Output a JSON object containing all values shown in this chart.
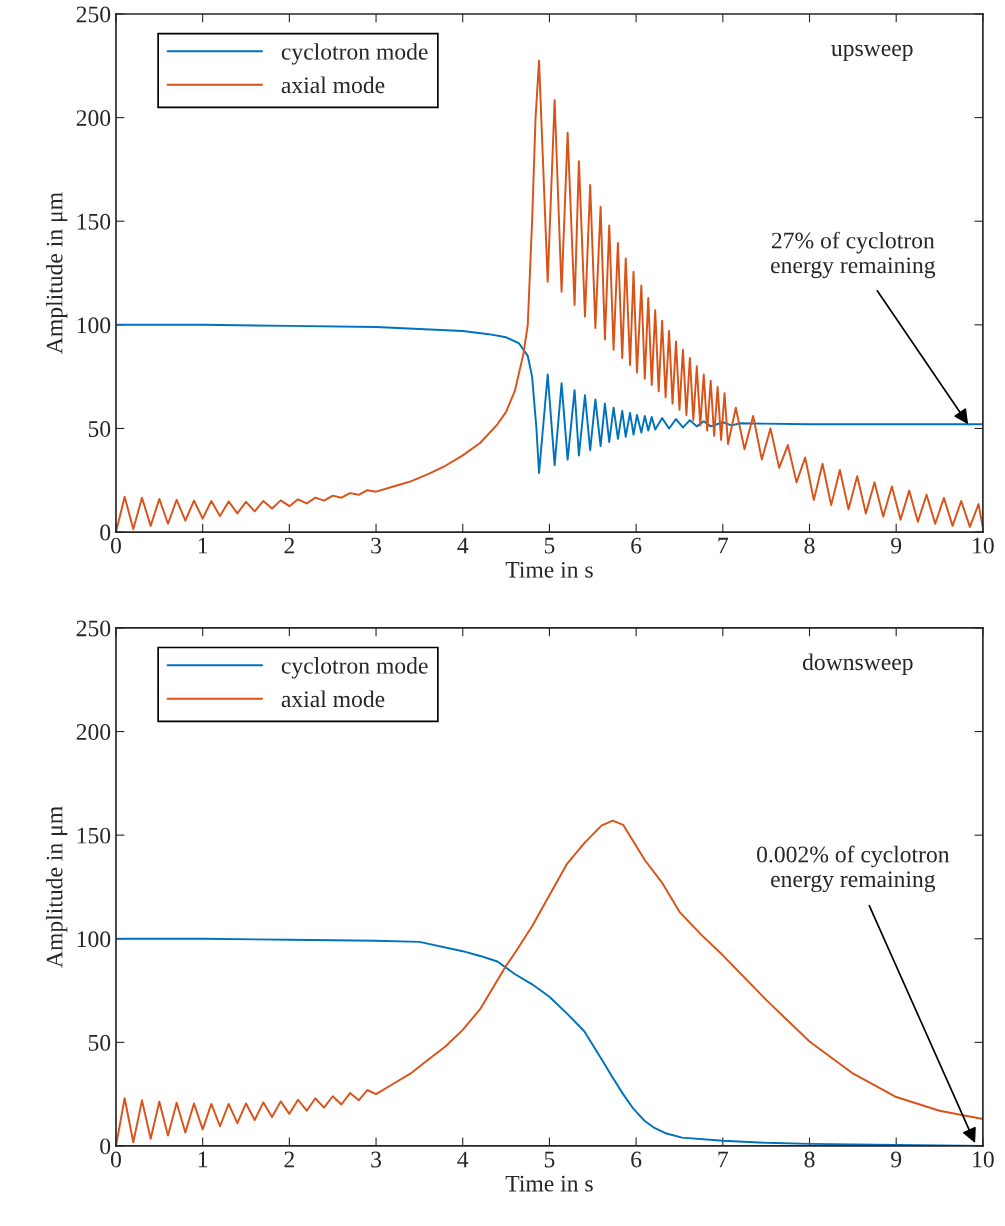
{
  "chart_data": [
    {
      "type": "line",
      "xlabel": "Time in s",
      "ylabel": "Amplitude in μm",
      "xlim": [
        0,
        10
      ],
      "ylim": [
        0,
        250
      ],
      "xticks": [
        0,
        1,
        2,
        3,
        4,
        5,
        6,
        7,
        8,
        9,
        10
      ],
      "yticks": [
        0,
        50,
        100,
        150,
        200,
        250
      ],
      "legend": "top left",
      "grid": false,
      "annotations": [
        "upsweep",
        {
          "text": "27% of cyclotron\nenergy remaining",
          "x": 9.83,
          "y": 52
        }
      ],
      "series": [
        {
          "name": "cyclotron mode",
          "color": "#0072bd",
          "x": [
            0,
            1,
            2,
            3,
            3.5,
            4.0,
            4.3,
            4.5,
            4.65,
            4.75,
            4.8,
            4.85,
            4.88,
            4.98,
            5.06,
            5.14,
            5.21,
            5.29,
            5.34,
            5.41,
            5.47,
            5.53,
            5.59,
            5.64,
            5.69,
            5.74,
            5.79,
            5.84,
            5.88,
            5.93,
            5.97,
            6.01,
            6.06,
            6.1,
            6.14,
            6.18,
            6.22,
            6.3,
            6.38,
            6.46,
            6.54,
            6.62,
            6.7,
            6.78,
            6.86,
            7.0,
            7.1,
            7.2,
            8,
            9,
            10
          ],
          "values": [
            100,
            100,
            99.5,
            99,
            98,
            97,
            95.5,
            94,
            91,
            85,
            75,
            50,
            28.5,
            76,
            32.3,
            71.8,
            35,
            68.5,
            37,
            66,
            39.5,
            64,
            41.5,
            62,
            43.5,
            60,
            45,
            58.5,
            46,
            57.5,
            47,
            56.5,
            48,
            56,
            49,
            55.5,
            49.5,
            55,
            50,
            54.5,
            50.5,
            54,
            51,
            53.5,
            51,
            53,
            51.5,
            52.5,
            52,
            52,
            52
          ]
        },
        {
          "name": "axial mode",
          "color": "#d95319",
          "x": [
            0,
            0.1,
            0.2,
            0.3,
            0.4,
            0.5,
            0.6,
            0.7,
            0.8,
            0.9,
            1.0,
            1.1,
            1.2,
            1.3,
            1.4,
            1.5,
            1.6,
            1.7,
            1.8,
            1.9,
            2.0,
            2.1,
            2.2,
            2.3,
            2.4,
            2.5,
            2.6,
            2.7,
            2.8,
            2.9,
            3.0,
            3.2,
            3.4,
            3.6,
            3.8,
            4.0,
            4.2,
            4.4,
            4.5,
            4.6,
            4.7,
            4.75,
            4.8,
            4.84,
            4.88,
            4.98,
            5.06,
            5.14,
            5.21,
            5.29,
            5.34,
            5.41,
            5.47,
            5.53,
            5.59,
            5.64,
            5.69,
            5.74,
            5.79,
            5.84,
            5.88,
            5.93,
            5.97,
            6.01,
            6.06,
            6.1,
            6.14,
            6.18,
            6.22,
            6.26,
            6.3,
            6.34,
            6.38,
            6.42,
            6.46,
            6.5,
            6.54,
            6.58,
            6.62,
            6.66,
            6.7,
            6.74,
            6.78,
            6.82,
            6.86,
            6.9,
            6.94,
            6.98,
            7.02,
            7.06,
            7.15,
            7.25,
            7.35,
            7.45,
            7.55,
            7.65,
            7.75,
            7.85,
            7.95,
            8.05,
            8.15,
            8.25,
            8.35,
            8.45,
            8.55,
            8.65,
            8.75,
            8.85,
            8.95,
            9.05,
            9.15,
            9.25,
            9.35,
            9.45,
            9.55,
            9.65,
            9.75,
            9.85,
            9.95,
            10
          ],
          "values": [
            0,
            17,
            1.5,
            16.6,
            3,
            16,
            4,
            15.6,
            5.5,
            15.2,
            6.5,
            15,
            7.7,
            14.8,
            9,
            14.6,
            10,
            15,
            11.4,
            15.3,
            12.5,
            15.8,
            13.8,
            16.6,
            15.2,
            17.6,
            16.6,
            18.8,
            18,
            20.2,
            19.5,
            22,
            24.5,
            28,
            32,
            37,
            43,
            52,
            58,
            68,
            86,
            100,
            150,
            200,
            227.5,
            120.8,
            208.5,
            116,
            192.7,
            109.6,
            179,
            104,
            167.5,
            98.5,
            157,
            93,
            148,
            88,
            139.5,
            84,
            132,
            80.6,
            125.6,
            77,
            119,
            74,
            113,
            71,
            107,
            68,
            102,
            65,
            97,
            62,
            92,
            59,
            88,
            56.5,
            84,
            54,
            80,
            51.5,
            76,
            49,
            73,
            46.5,
            70,
            44.5,
            67,
            42.5,
            60,
            40,
            56,
            35,
            50,
            31,
            42,
            24,
            36,
            15.5,
            33,
            13,
            30,
            11,
            27,
            9,
            24,
            7.5,
            22,
            6,
            20,
            5,
            18,
            4,
            16.5,
            3,
            15,
            2.5,
            13.5,
            2
          ]
        }
      ]
    },
    {
      "type": "line",
      "xlabel": "Time in s",
      "ylabel": "Amplitude in μm",
      "xlim": [
        0,
        10
      ],
      "ylim": [
        0,
        250
      ],
      "xticks": [
        0,
        1,
        2,
        3,
        4,
        5,
        6,
        7,
        8,
        9,
        10
      ],
      "yticks": [
        0,
        50,
        100,
        150,
        200,
        250
      ],
      "legend": "top left",
      "grid": false,
      "annotations": [
        "downsweep",
        {
          "text": "0.002% of cyclotron\nenergy remaining",
          "x": 9.91,
          "y": 1.4
        }
      ],
      "series": [
        {
          "name": "cyclotron mode",
          "color": "#0072bd",
          "x": [
            0,
            1,
            2,
            3,
            3.5,
            4.0,
            4.2,
            4.4,
            4.6,
            4.8,
            5.0,
            5.2,
            5.4,
            5.6,
            5.72,
            5.85,
            5.96,
            6.1,
            6.2,
            6.35,
            6.53,
            7.0,
            7.5,
            8,
            9,
            10
          ],
          "values": [
            100,
            100,
            99.5,
            99,
            98.5,
            94,
            91.7,
            89,
            83,
            78,
            72,
            64,
            55.5,
            42,
            33.6,
            25,
            18.4,
            12,
            9,
            6,
            4,
            2.5,
            1.5,
            1,
            0.5,
            0
          ]
        },
        {
          "name": "axial mode",
          "color": "#d95319",
          "x": [
            0,
            0.1,
            0.2,
            0.3,
            0.4,
            0.5,
            0.6,
            0.7,
            0.8,
            0.9,
            1.0,
            1.1,
            1.2,
            1.3,
            1.4,
            1.5,
            1.6,
            1.7,
            1.8,
            1.9,
            2.0,
            2.1,
            2.2,
            2.3,
            2.4,
            2.5,
            2.6,
            2.7,
            2.8,
            2.9,
            3.0,
            3.2,
            3.4,
            3.6,
            3.8,
            4.0,
            4.2,
            4.4,
            4.5,
            4.6,
            4.8,
            5.0,
            5.2,
            5.4,
            5.6,
            5.73,
            5.85,
            6.1,
            6.3,
            6.5,
            6.75,
            7.0,
            7.5,
            8.0,
            8.5,
            9.0,
            9.5,
            10
          ],
          "values": [
            0,
            23,
            1.8,
            22,
            3.5,
            21.3,
            5,
            20.8,
            6.5,
            20.5,
            8,
            20.3,
            9.5,
            20.3,
            11,
            20.5,
            12.5,
            21,
            14,
            21.5,
            15.5,
            22.3,
            17,
            23,
            18.5,
            24,
            20,
            25.5,
            22,
            27,
            25,
            30,
            35,
            41.6,
            48,
            56,
            66,
            80,
            87,
            93,
            106,
            121,
            136,
            146,
            154.6,
            157,
            155,
            138,
            127,
            113,
            102,
            92,
            70.5,
            50.4,
            35,
            23.6,
            17,
            13
          ]
        }
      ]
    }
  ]
}
